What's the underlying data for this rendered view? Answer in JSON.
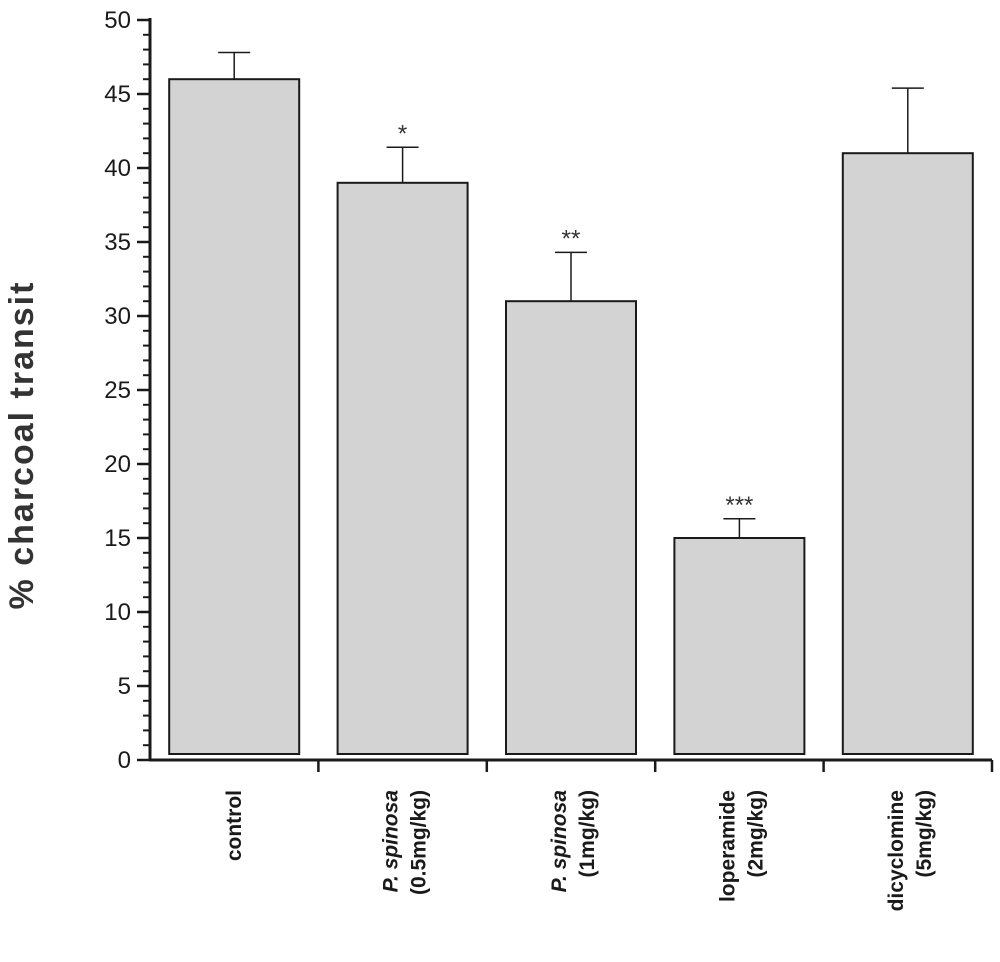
{
  "chart_data": {
    "type": "bar",
    "ylabel": "% charcoal transit",
    "xlabel": "",
    "ylim": [
      0,
      50
    ],
    "yticks": [
      0,
      5,
      10,
      15,
      20,
      25,
      30,
      35,
      40,
      45,
      50
    ],
    "y_minor_step": 1,
    "categories": [
      {
        "line1_italic": "",
        "line1": "control",
        "line2": ""
      },
      {
        "line1_italic": "P. spinosa",
        "line1": "",
        "line2": "(0.5mg/kg)"
      },
      {
        "line1_italic": "P. spinosa",
        "line1": "",
        "line2": "(1mg/kg)"
      },
      {
        "line1_italic": "",
        "line1": "loperamide",
        "line2": "(2mg/kg)"
      },
      {
        "line1_italic": "",
        "line1": "dicyclomine",
        "line2": "(5mg/kg)"
      }
    ],
    "values": [
      46,
      39,
      31,
      15,
      41
    ],
    "errors": [
      1.8,
      2.4,
      3.3,
      1.3,
      4.4
    ],
    "significance": [
      "",
      "*",
      "**",
      "***",
      ""
    ],
    "bar_color": "#d3d3d3",
    "edge_color": "#1a1a1a",
    "grid": false,
    "legend": "none"
  }
}
